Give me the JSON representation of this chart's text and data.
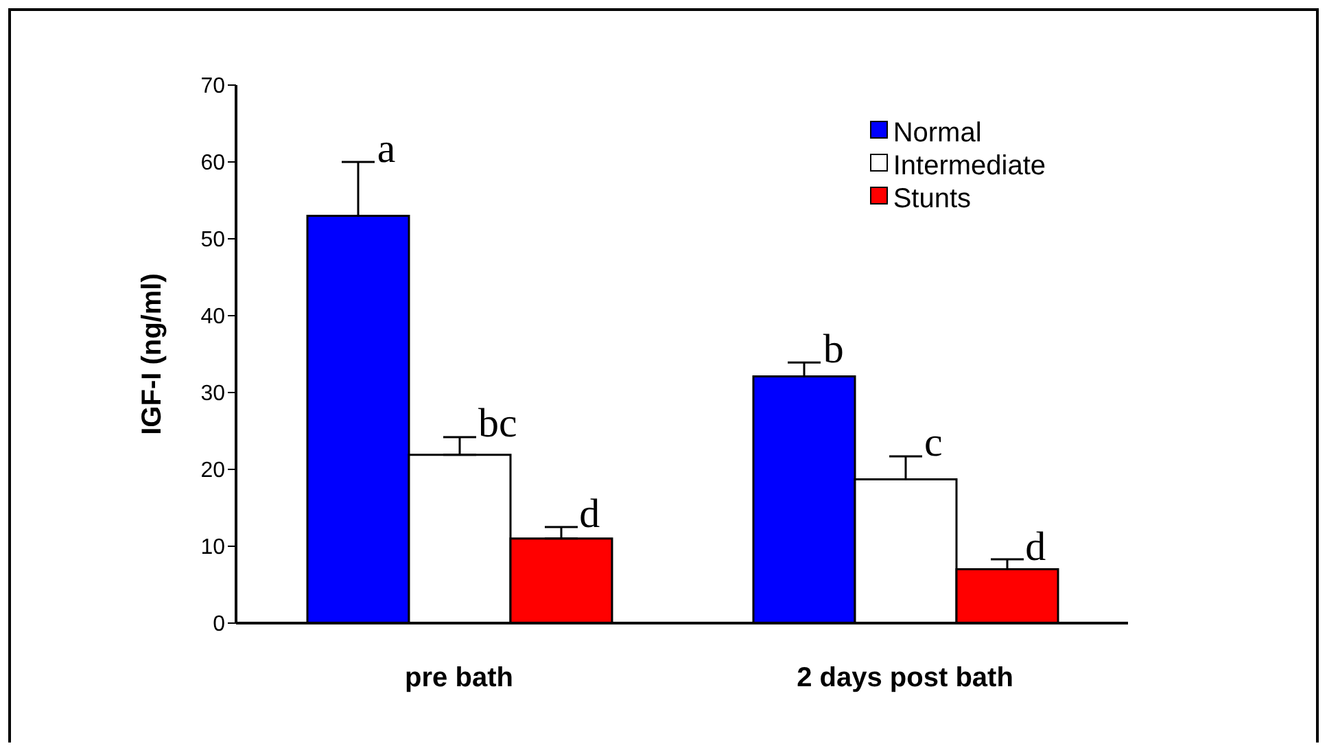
{
  "chart_data": {
    "type": "bar",
    "ylabel": "IGF-I (ng/ml)",
    "categories": [
      "pre bath",
      "2 days post bath"
    ],
    "series": [
      {
        "name": "Normal",
        "color": "#0000ff",
        "values": [
          53,
          32.1
        ],
        "errors": [
          [
            53,
            60
          ],
          [
            32.1,
            33.9
          ]
        ]
      },
      {
        "name": "Intermediate",
        "color": "#ffffff",
        "values": [
          21.9,
          18.7
        ],
        "errors": [
          [
            21.9,
            24.2
          ],
          [
            18.7,
            21.7
          ]
        ]
      },
      {
        "name": "Stunts",
        "color": "#ff0000",
        "values": [
          11,
          7
        ],
        "errors": [
          [
            11,
            12.5
          ],
          [
            7,
            8.3
          ]
        ]
      }
    ],
    "ylim": [
      0,
      70
    ],
    "yticks": [
      0,
      10,
      20,
      30,
      40,
      50,
      60,
      70
    ],
    "grid": false,
    "legend": "top right",
    "annotations": [
      "a",
      "bc",
      "d",
      "b",
      "c",
      "d"
    ]
  }
}
